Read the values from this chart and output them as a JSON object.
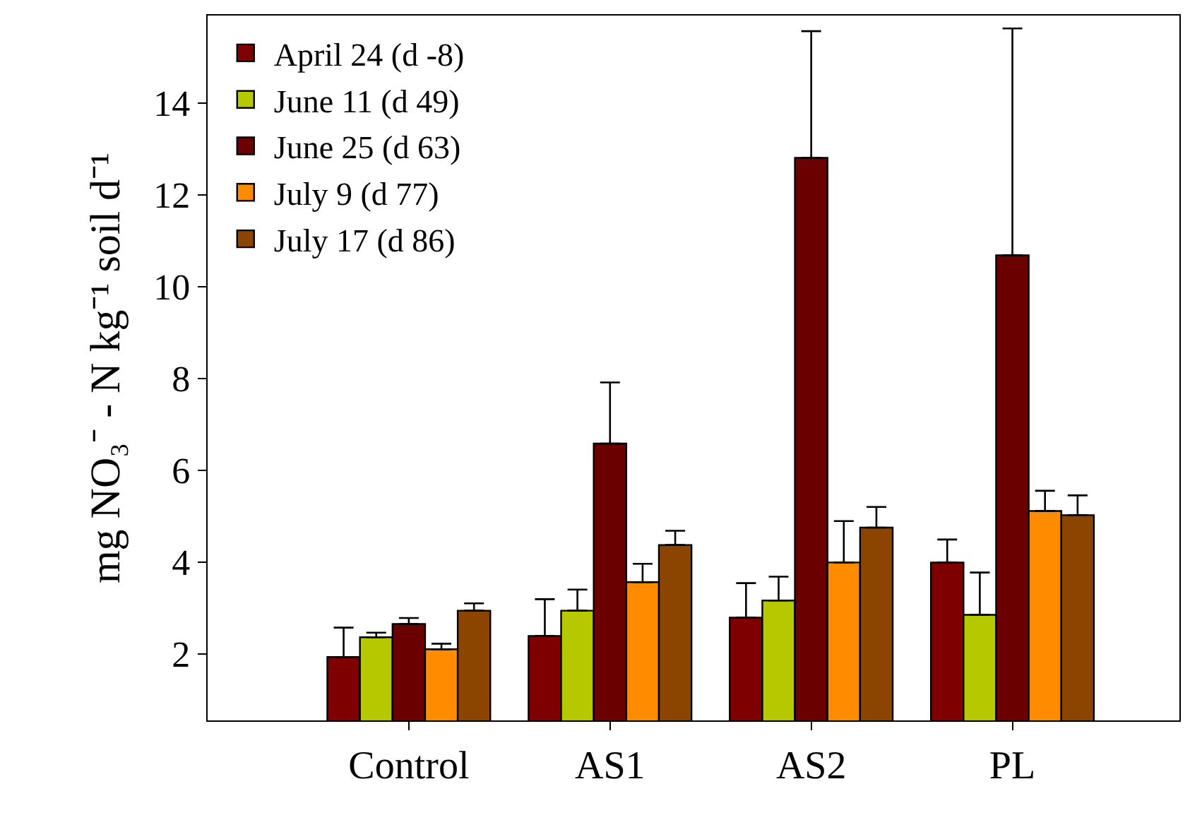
{
  "chart_data": {
    "type": "bar",
    "ylabel": "mg NO₃⁻ - N kg⁻¹ soil d⁻¹",
    "categories": [
      "Control",
      "AS1",
      "AS2",
      "PL"
    ],
    "series": [
      {
        "name": "April 24 (d -8)",
        "color": "#7f0000",
        "values": [
          1.93,
          2.39,
          2.79,
          3.99
        ],
        "errors": [
          [
            1.93,
            2.57
          ],
          [
            2.39,
            3.19
          ],
          [
            2.79,
            3.54
          ],
          [
            3.99,
            4.49
          ]
        ]
      },
      {
        "name": "June 11 (d 49)",
        "color": "#b5c800",
        "values": [
          2.36,
          2.94,
          3.16,
          2.85
        ],
        "errors": [
          [
            2.36,
            2.46
          ],
          [
            2.94,
            3.4
          ],
          [
            3.16,
            3.68
          ],
          [
            2.85,
            3.77
          ]
        ]
      },
      {
        "name": "June 25 (d 63)",
        "color": "#6b0000",
        "values": [
          2.65,
          6.58,
          12.8,
          10.68
        ],
        "errors": [
          [
            2.65,
            2.78
          ],
          [
            6.58,
            7.91
          ],
          [
            12.8,
            15.56
          ],
          [
            10.68,
            15.62
          ]
        ]
      },
      {
        "name": "July 9 (d 77)",
        "color": "#ff8c00",
        "values": [
          2.1,
          3.56,
          3.99,
          5.11
        ],
        "errors": [
          [
            2.1,
            2.22
          ],
          [
            3.56,
            3.96
          ],
          [
            3.99,
            4.89
          ],
          [
            5.11,
            5.55
          ]
        ]
      },
      {
        "name": "July 17 (d 86)",
        "color": "#8b4500",
        "values": [
          2.94,
          4.37,
          4.75,
          5.02
        ],
        "errors": [
          [
            2.94,
            3.1
          ],
          [
            4.37,
            4.68
          ],
          [
            4.75,
            5.2
          ],
          [
            5.02,
            5.45
          ]
        ]
      }
    ],
    "ylim": [
      0.55,
      15.9
    ],
    "yticks": [
      2,
      4,
      6,
      8,
      10,
      12,
      14
    ],
    "grid": false,
    "legend": "top left"
  }
}
